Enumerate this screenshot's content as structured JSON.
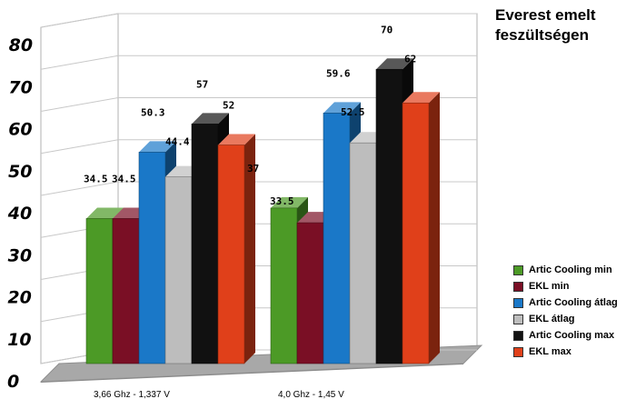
{
  "chart_data": {
    "type": "bar",
    "title_line1": "Everest emelt",
    "title_line2": "feszültségen",
    "categories": [
      "3,66 Ghz - 1,337 V",
      "4,0 Ghz - 1,45 V"
    ],
    "series": [
      {
        "name": "Artic Cooling min",
        "color": "#4c9a26",
        "values": [
          34.5,
          37
        ]
      },
      {
        "name": "EKL min",
        "color": "#7a0f25",
        "values": [
          34.5,
          33.5
        ]
      },
      {
        "name": "Artic Cooling átlag",
        "color": "#1a78c8",
        "values": [
          50.3,
          59.6
        ]
      },
      {
        "name": "EKL átlag",
        "color": "#bdbdbd",
        "values": [
          44.4,
          52.5
        ]
      },
      {
        "name": "Artic Cooling max",
        "color": "#111111",
        "values": [
          57,
          70
        ]
      },
      {
        "name": "EKL max",
        "color": "#e0401a",
        "values": [
          52,
          62
        ]
      }
    ],
    "y_ticks": [
      "0",
      "10",
      "20",
      "30",
      "40",
      "50",
      "60",
      "70",
      "80"
    ],
    "ylim": [
      0,
      80
    ],
    "grid": true,
    "legend_position": "right",
    "render_style": "3d-bar"
  }
}
